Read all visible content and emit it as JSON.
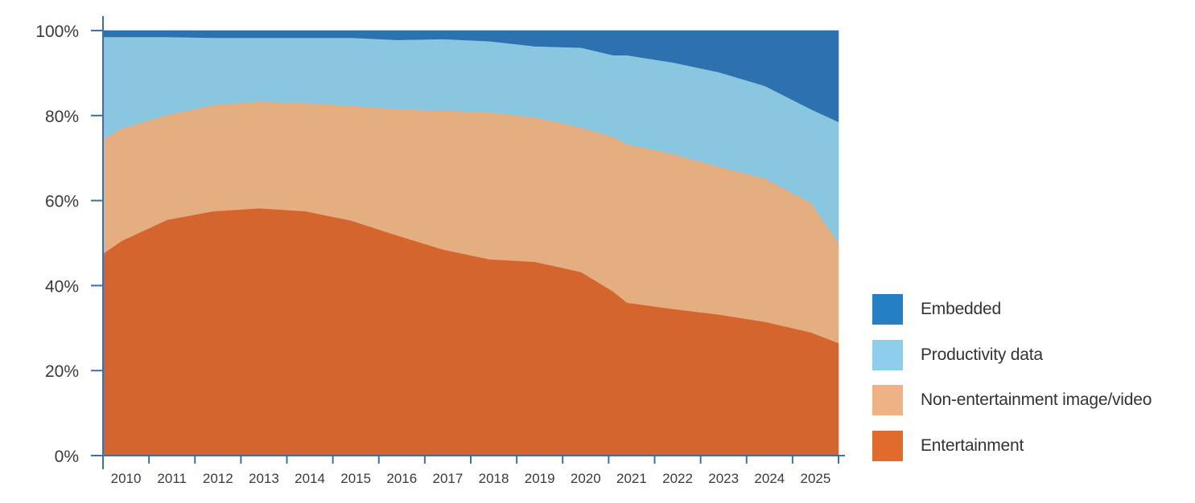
{
  "chart_data": {
    "type": "area",
    "stacked": true,
    "x": [
      2009.6,
      2010,
      2011,
      2012,
      2013,
      2014,
      2015,
      2016,
      2017,
      2018,
      2019,
      2020,
      2020.7,
      2021,
      2022,
      2023,
      2024,
      2025,
      2025.6
    ],
    "categories": [
      "2010",
      "2011",
      "2012",
      "2013",
      "2014",
      "2015",
      "2016",
      "2017",
      "2018",
      "2019",
      "2020",
      "2021",
      "2022",
      "2023",
      "2024",
      "2025"
    ],
    "series": [
      {
        "name": "Entertainment",
        "color": "#D5652E",
        "values": [
          47.5,
          50.5,
          55.5,
          57.5,
          58.2,
          57.5,
          55.3,
          51.8,
          48.5,
          46.2,
          45.6,
          43.2,
          38.6,
          36.0,
          34.5,
          33.2,
          31.5,
          29.0,
          26.5
        ]
      },
      {
        "name": "Non-entertainment image/video",
        "color": "#E5AE80",
        "values": [
          27.0,
          26.5,
          24.7,
          25.0,
          25.2,
          25.5,
          27.0,
          29.8,
          32.7,
          34.6,
          34.0,
          34.0,
          36.4,
          37.3,
          36.5,
          34.8,
          33.7,
          30.5,
          23.5
        ]
      },
      {
        "name": "Productivity data",
        "color": "#89C6E0",
        "values": [
          24.0,
          21.5,
          18.3,
          15.8,
          14.9,
          15.3,
          16.0,
          16.2,
          16.8,
          16.7,
          16.7,
          18.8,
          19.2,
          20.9,
          21.5,
          22.2,
          21.8,
          22.0,
          28.5
        ]
      },
      {
        "name": "Embedded",
        "color": "#2D71AE",
        "values": [
          1.5,
          1.5,
          1.5,
          1.7,
          1.7,
          1.7,
          1.7,
          2.2,
          2.0,
          2.5,
          3.7,
          4.0,
          5.8,
          5.8,
          7.5,
          9.8,
          13.0,
          18.5,
          21.5
        ]
      }
    ],
    "ylim": [
      0,
      100
    ],
    "yticks": [
      {
        "v": 0,
        "label": "0%"
      },
      {
        "v": 20,
        "label": "20%"
      },
      {
        "v": 40,
        "label": "40%"
      },
      {
        "v": 60,
        "label": "60%"
      },
      {
        "v": 80,
        "label": "80%"
      },
      {
        "v": 100,
        "label": "100%"
      }
    ],
    "xlim": [
      2009.6,
      2025.6
    ],
    "xlabel": "",
    "ylabel": "",
    "title": "",
    "grid": false,
    "legend_position": "right-bottom",
    "legend": [
      {
        "label": "Embedded",
        "color": "#2580C3"
      },
      {
        "label": "Productivity data",
        "color": "#8ECDEC"
      },
      {
        "label": "Non-entertainment image/video",
        "color": "#EFB287"
      },
      {
        "label": "Entertainment",
        "color": "#E06B2C"
      }
    ],
    "axis_color": "#3D6FA8"
  }
}
